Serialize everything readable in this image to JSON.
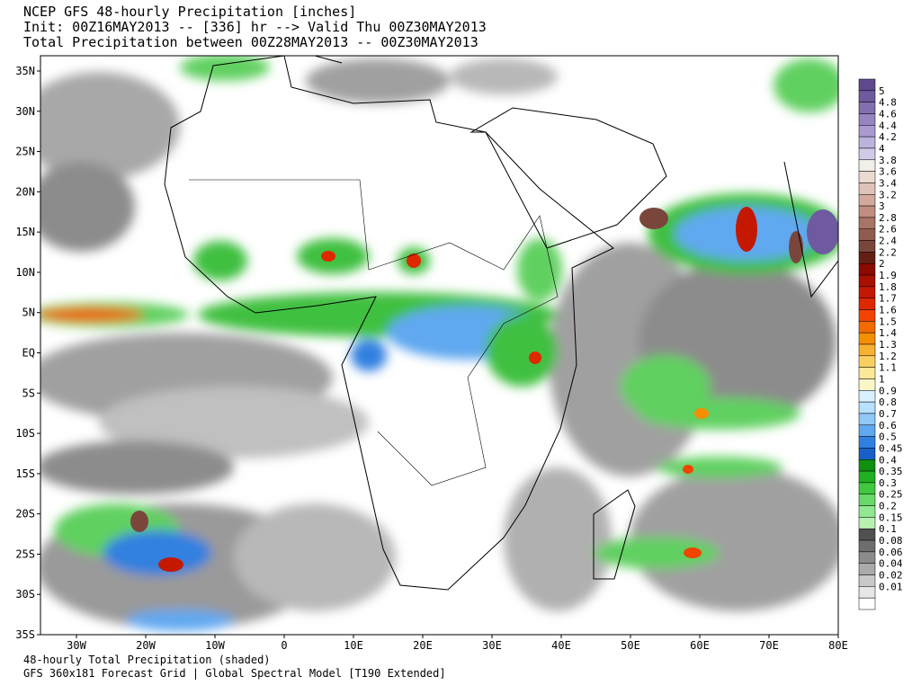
{
  "header": {
    "title": "NCEP GFS 48-hourly Precipitation [inches]",
    "init": "Init: 00Z16MAY2013 -- [336] hr --> Valid Thu 00Z30MAY2013",
    "period": "Total Precipitation between 00Z28MAY2013 -- 00Z30MAY2013"
  },
  "map": {
    "lat_labels": [
      "35N",
      "30N",
      "25N",
      "20N",
      "15N",
      "10N",
      "5N",
      "EQ",
      "5S",
      "10S",
      "15S",
      "20S",
      "25S",
      "30S",
      "35S"
    ],
    "lon_labels": [
      "30W",
      "20W",
      "10W",
      "0",
      "10E",
      "20E",
      "30E",
      "40E",
      "50E",
      "60E",
      "70E",
      "80E"
    ]
  },
  "colorbar": {
    "labels": [
      "5",
      "4.8",
      "4.6",
      "4.4",
      "4.2",
      "4",
      "3.8",
      "3.6",
      "3.4",
      "3.2",
      "3",
      "2.8",
      "2.6",
      "2.4",
      "2.2",
      "2",
      "1.9",
      "1.8",
      "1.7",
      "1.6",
      "1.5",
      "1.4",
      "1.3",
      "1.2",
      "1.1",
      "1",
      "0.9",
      "0.8",
      "0.7",
      "0.6",
      "0.5",
      "0.45",
      "0.4",
      "0.35",
      "0.3",
      "0.25",
      "0.2",
      "0.15",
      "0.1",
      "0.08",
      "0.06",
      "0.04",
      "0.02",
      "0.01"
    ],
    "colors": [
      "#5e4a8c",
      "#6f5aa0",
      "#8170b0",
      "#9585c0",
      "#a99bcf",
      "#bdb2dc",
      "#d2cbe8",
      "#f2eee8",
      "#eadad2",
      "#dfc3b8",
      "#d2a99c",
      "#bf8e80",
      "#a87466",
      "#905c50",
      "#7a463c",
      "#641f14",
      "#8c0a00",
      "#a81000",
      "#c41800",
      "#de2800",
      "#f04400",
      "#f26a00",
      "#f58e00",
      "#f7b030",
      "#f9d060",
      "#fbe898",
      "#fbf6c8",
      "#d8f0ff",
      "#b8e0ff",
      "#90c8f8",
      "#60a8f0",
      "#3080e0",
      "#1860c8",
      "#109010",
      "#20b020",
      "#40c840",
      "#68d868",
      "#90e890",
      "#b8f0b0",
      "#505050",
      "#6e6e6e",
      "#8c8c8c",
      "#aaaaaa",
      "#c8c8c8",
      "#e6e6e6",
      "#ffffff"
    ]
  },
  "footer": {
    "line1": "48-hourly Total Precipitation (shaded)",
    "line2": "GFS 360x181 Forecast Grid | Global Spectral Model [T190 Extended]"
  }
}
